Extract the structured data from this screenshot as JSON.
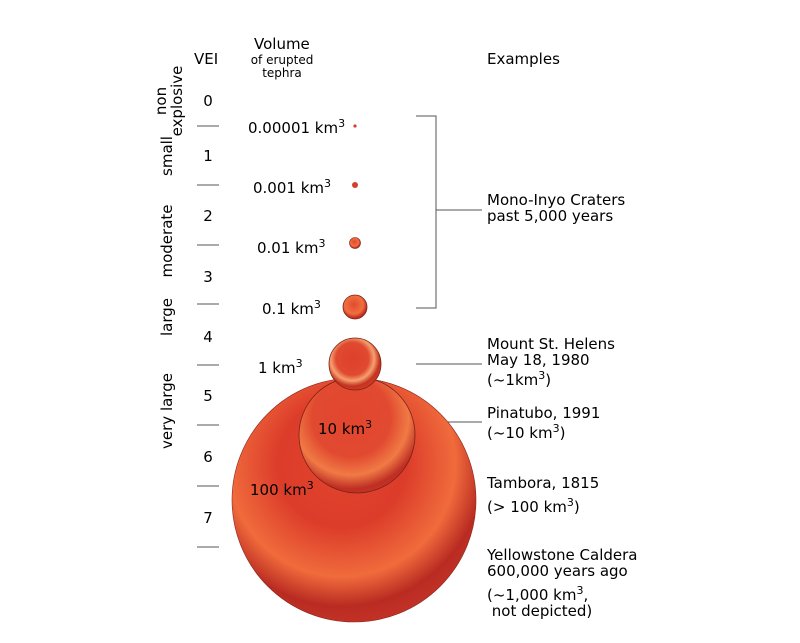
{
  "headers": {
    "vei": "VEI",
    "volume": "Volume",
    "volume_sub1": "of erupted",
    "volume_sub2": "tephra",
    "examples": "Examples"
  },
  "categories": {
    "non_explosive_1": "non",
    "non_explosive_2": "explosive",
    "small": "small",
    "moderate": "moderate",
    "large": "large",
    "very_large": "very large"
  },
  "vei_levels": [
    "0",
    "1",
    "2",
    "3",
    "4",
    "5",
    "6",
    "7"
  ],
  "volumes": [
    {
      "base": "0.00001 km",
      "exp": "3"
    },
    {
      "base": "0.001 km",
      "exp": "3"
    },
    {
      "base": "0.01 km",
      "exp": "3"
    },
    {
      "base": "0.1 km",
      "exp": "3"
    },
    {
      "base": "1 km",
      "exp": "3"
    },
    {
      "base": "10 km",
      "exp": "3"
    },
    {
      "base": "100 km",
      "exp": "3"
    }
  ],
  "examples": {
    "mono_line1": "Mono-Inyo Craters",
    "mono_line2": "past 5,000 years",
    "helens_line1": "Mount St. Helens",
    "helens_line2": "May 18, 1980",
    "helens_line3_pre": "(~1km",
    "helens_line3_exp": "3",
    "helens_line3_post": ")",
    "pinatubo_line1": "Pinatubo, 1991",
    "pinatubo_line2_pre": "(~10 km",
    "pinatubo_line2_exp": "3",
    "pinatubo_line2_post": ")",
    "tambora_line1": "Tambora, 1815",
    "tambora_line2_pre": "(> 100 km",
    "tambora_line2_exp": "3",
    "tambora_line2_post": ")",
    "yellowstone_line1": "Yellowstone Caldera",
    "yellowstone_line2": "600,000 years ago",
    "yellowstone_line3_pre": "(~1,000 km",
    "yellowstone_line3_exp": "3",
    "yellowstone_line3_post": ",",
    "yellowstone_line4": " not depicted)"
  },
  "colors": {
    "sphere_light": "#ee6a40",
    "sphere_mid": "#d7412e",
    "sphere_dark": "#b8261f",
    "rule": "#555555"
  }
}
